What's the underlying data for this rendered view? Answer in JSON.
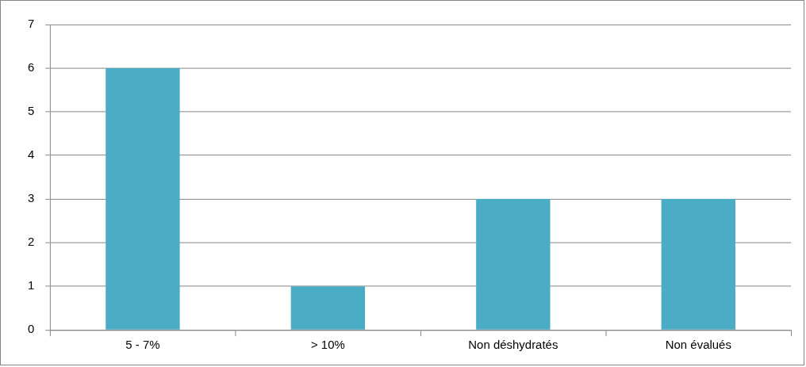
{
  "chart_data": {
    "type": "bar",
    "categories": [
      "5 - 7%",
      "> 10%",
      "Non déshydratés",
      "Non évalués"
    ],
    "values": [
      6,
      1,
      3,
      3
    ],
    "color": "#4bacc6",
    "ylim": [
      0,
      7
    ],
    "yticks": [
      0,
      1,
      2,
      3,
      4,
      5,
      6,
      7
    ],
    "grid": "y",
    "legend": false
  }
}
